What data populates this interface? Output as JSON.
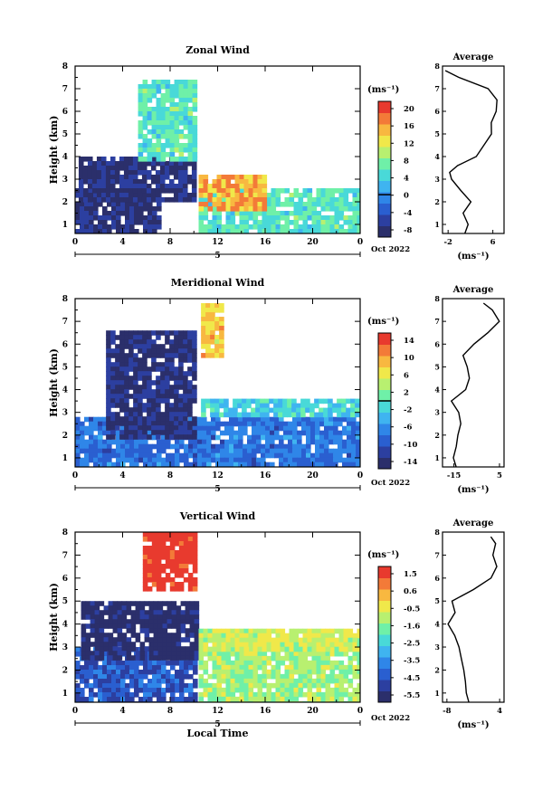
{
  "colors": {
    "colormap": [
      "#2b2f6b",
      "#2c3fa0",
      "#2a5fd0",
      "#2f86e8",
      "#3fb4f0",
      "#49d9d8",
      "#6ff0a8",
      "#b8f070",
      "#f0e84a",
      "#f8b840",
      "#f37a38",
      "#e83a2e"
    ],
    "background": "#ffffff",
    "line": "#000000"
  },
  "panels": [
    {
      "title": "Zonal Wind",
      "ylabel": "Height (km)",
      "xticks": [
        "0",
        "4",
        "8",
        "12",
        "16",
        "20",
        "0"
      ],
      "date_marker": "5",
      "date_label": "Oct 2022",
      "yticks": [
        "1",
        "2",
        "3",
        "4",
        "5",
        "6",
        "7",
        "8"
      ],
      "colorbar": {
        "unit": "(ms⁻¹)",
        "ticks": [
          "20",
          "16",
          "12",
          "8",
          "4",
          "0",
          "-4",
          "-8"
        ],
        "range": [
          -10,
          22
        ],
        "zero_line": 0
      },
      "profile": {
        "title": "Average",
        "xticks": [
          "-2",
          "6"
        ],
        "xrange": [
          -3,
          8
        ],
        "unit": "(ms⁻¹)"
      }
    },
    {
      "title": "Meridional Wind",
      "ylabel": "Height (km)",
      "xticks": [
        "0",
        "4",
        "8",
        "12",
        "16",
        "20",
        "0"
      ],
      "date_marker": "5",
      "date_label": "Oct 2022",
      "yticks": [
        "1",
        "2",
        "3",
        "4",
        "5",
        "6",
        "7",
        "8"
      ],
      "colorbar": {
        "unit": "(ms⁻¹)",
        "ticks": [
          "14",
          "10",
          "6",
          "2",
          "-2",
          "-6",
          "-10",
          "-14"
        ],
        "range": [
          -16,
          16
        ],
        "zero_line": 0
      },
      "profile": {
        "title": "Average",
        "xticks": [
          "-15",
          "5"
        ],
        "xrange": [
          -20,
          7
        ],
        "unit": "(ms⁻¹)"
      }
    },
    {
      "title": "Vertical Wind",
      "ylabel": "Height (km)",
      "xlabel": "Local Time",
      "xticks": [
        "0",
        "4",
        "8",
        "12",
        "16",
        "20",
        "0"
      ],
      "date_marker": "5",
      "date_label": "Oct 2022",
      "yticks": [
        "1",
        "2",
        "3",
        "4",
        "5",
        "6",
        "7",
        "8"
      ],
      "colorbar": {
        "unit": "(ms⁻¹)",
        "ticks": [
          "1.5",
          "0.6",
          "-0.5",
          "-1.6",
          "-2.5",
          "-3.5",
          "-4.5",
          "-5.5"
        ],
        "range": [
          -6,
          2
        ],
        "zero_line": null
      },
      "profile": {
        "title": "Average",
        "xticks": [
          "-8",
          "4"
        ],
        "xrange": [
          -9,
          5
        ],
        "unit": "(ms⁻¹)"
      }
    }
  ],
  "chart_data": [
    {
      "type": "heatmap",
      "title": "Zonal Wind",
      "ylabel": "Height (km)",
      "x_range": [
        0,
        24
      ],
      "y_range": [
        0.6,
        8
      ],
      "color_range": [
        -10,
        22
      ],
      "regions": [
        {
          "x": [
            0,
            6.9
          ],
          "y": [
            0.6,
            2.6
          ],
          "value": -8
        },
        {
          "x": [
            0.3,
            10.2
          ],
          "y": [
            2.0,
            4.0
          ],
          "value": -8
        },
        {
          "x": [
            10.4,
            24
          ],
          "y": [
            0.6,
            2.6
          ],
          "value": 6
        },
        {
          "x": [
            10.4,
            16
          ],
          "y": [
            1.6,
            3.2
          ],
          "value": 16
        },
        {
          "x": [
            5.3,
            10.2
          ],
          "y": [
            3.8,
            7.4
          ],
          "value": 6
        }
      ],
      "profile": {
        "title": "Average",
        "height": [
          0.6,
          1.0,
          1.5,
          2.0,
          2.5,
          3.0,
          3.3,
          3.6,
          4.0,
          4.5,
          5.0,
          5.5,
          6.0,
          6.5,
          7.0,
          7.5,
          7.8
        ],
        "value": [
          1.0,
          1.5,
          0.8,
          2.0,
          0.5,
          -1.5,
          -2.0,
          -0.5,
          3.0,
          4.5,
          6.0,
          5.5,
          6.5,
          7.0,
          5.0,
          0.0,
          -2.5
        ]
      }
    },
    {
      "type": "heatmap",
      "title": "Meridional Wind",
      "ylabel": "Height (km)",
      "x_range": [
        0,
        24
      ],
      "y_range": [
        0.6,
        8
      ],
      "color_range": [
        -16,
        16
      ],
      "regions": [
        {
          "x": [
            0,
            24
          ],
          "y": [
            0.6,
            2.8
          ],
          "value": -8
        },
        {
          "x": [
            2.6,
            10.0
          ],
          "y": [
            2.0,
            6.6
          ],
          "value": -14
        },
        {
          "x": [
            10.6,
            23.8
          ],
          "y": [
            3.0,
            3.6
          ],
          "value": -2
        },
        {
          "x": [
            10.6,
            12.2
          ],
          "y": [
            5.5,
            7.8
          ],
          "value": 8
        }
      ],
      "profile": {
        "title": "Average",
        "height": [
          0.6,
          1.0,
          1.5,
          2.0,
          2.5,
          3.0,
          3.5,
          4.0,
          4.5,
          5.0,
          5.5,
          6.0,
          6.5,
          7.0,
          7.5,
          7.8
        ],
        "value": [
          -14,
          -15,
          -14,
          -13,
          -12,
          -13,
          -16,
          -10,
          -8,
          -9,
          -11,
          -6,
          0,
          5,
          2,
          -2
        ]
      }
    },
    {
      "type": "heatmap",
      "title": "Vertical Wind",
      "ylabel": "Height (km)",
      "xlabel": "Local Time",
      "x_range": [
        0,
        24
      ],
      "y_range": [
        0.6,
        8
      ],
      "color_range": [
        -6,
        2
      ],
      "regions": [
        {
          "x": [
            0,
            10.2
          ],
          "y": [
            0.6,
            3.0
          ],
          "value": -4.5
        },
        {
          "x": [
            0.5,
            10.2
          ],
          "y": [
            2.6,
            5.0
          ],
          "value": -5.8
        },
        {
          "x": [
            10.4,
            24
          ],
          "y": [
            0.6,
            3.4
          ],
          "value": -1.2
        },
        {
          "x": [
            10.4,
            23.8
          ],
          "y": [
            3.0,
            3.8
          ],
          "value": -0.8
        },
        {
          "x": [
            5.7,
            10.1
          ],
          "y": [
            5.6,
            8.0
          ],
          "value": 1.9
        }
      ],
      "profile": {
        "title": "Average",
        "height": [
          0.6,
          1.0,
          1.5,
          2.0,
          2.5,
          3.0,
          3.5,
          4.0,
          4.5,
          5.0,
          5.5,
          6.0,
          6.5,
          7.0,
          7.5,
          7.8
        ],
        "value": [
          -3,
          -3.5,
          -4,
          -4,
          -4.5,
          -5.5,
          -6.5,
          -7.5,
          -6.0,
          -7.0,
          -2.0,
          2.0,
          3.5,
          2.5,
          3.0,
          2.0
        ]
      }
    }
  ]
}
